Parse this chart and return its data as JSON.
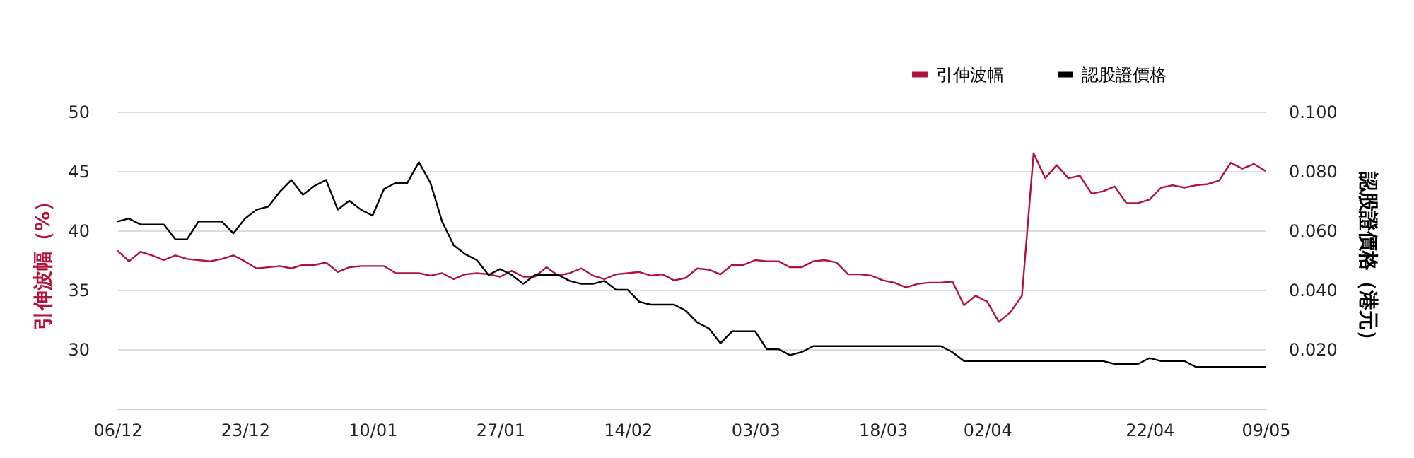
{
  "chart_data": {
    "type": "line",
    "ylabel": "引伸波幅（%）",
    "y2label": "認股證價格（港元）",
    "categories": [
      "06/12",
      null,
      null,
      null,
      null,
      null,
      null,
      null,
      null,
      null,
      null,
      "23/12",
      null,
      null,
      null,
      null,
      null,
      null,
      null,
      null,
      null,
      null,
      "10/01",
      null,
      null,
      null,
      null,
      null,
      null,
      null,
      null,
      null,
      null,
      "27/01",
      null,
      null,
      null,
      null,
      null,
      null,
      null,
      null,
      null,
      null,
      "14/02",
      null,
      null,
      null,
      null,
      null,
      null,
      null,
      null,
      null,
      null,
      "03/03",
      null,
      null,
      null,
      null,
      null,
      null,
      null,
      null,
      null,
      null,
      "18/03",
      null,
      null,
      null,
      null,
      null,
      null,
      null,
      null,
      "02/04",
      null,
      null,
      null,
      null,
      null,
      null,
      null,
      null,
      null,
      null,
      null,
      null,
      null,
      "22/04",
      null,
      null,
      null,
      null,
      null,
      null,
      null,
      null,
      null,
      "09/05"
    ],
    "series": [
      {
        "name": "引伸波幅",
        "color": "#b0123a",
        "values": [
          38.3,
          37.4,
          38.2,
          37.9,
          37.5,
          37.9,
          37.6,
          37.5,
          37.4,
          37.6,
          37.9,
          37.4,
          36.8,
          36.9,
          37.0,
          36.8,
          37.1,
          37.1,
          37.3,
          36.5,
          36.9,
          37.0,
          37.0,
          37.0,
          36.4,
          36.4,
          36.4,
          36.2,
          36.4,
          35.9,
          36.3,
          36.4,
          36.3,
          36.1,
          36.6,
          36.1,
          36.1,
          36.9,
          36.2,
          36.4,
          36.8,
          36.2,
          35.9,
          36.3,
          36.4,
          36.5,
          36.2,
          36.3,
          35.8,
          36.0,
          36.8,
          36.7,
          36.3,
          37.1,
          37.1,
          37.5,
          37.4,
          37.4,
          36.9,
          36.9,
          37.4,
          37.5,
          37.3,
          36.3,
          36.3,
          36.2,
          35.8,
          35.6,
          35.2,
          35.5,
          35.6,
          35.6,
          35.7,
          33.7,
          34.5,
          34.0,
          32.3,
          33.1,
          34.5,
          46.5,
          44.4,
          45.5,
          44.4,
          44.6,
          43.1,
          43.3,
          43.7,
          42.3,
          42.3,
          42.6,
          43.6,
          43.8,
          43.6,
          43.8,
          43.9,
          44.2,
          45.7,
          45.2,
          45.6,
          45.0
        ]
      },
      {
        "name": "認股證價格",
        "color": "#000000",
        "axis": "y2",
        "values": [
          0.063,
          0.064,
          0.062,
          0.062,
          0.062,
          0.057,
          0.057,
          0.063,
          0.063,
          0.063,
          0.059,
          0.064,
          0.067,
          0.068,
          0.073,
          0.077,
          0.072,
          0.075,
          0.077,
          0.067,
          0.07,
          0.067,
          0.065,
          0.074,
          0.076,
          0.076,
          0.083,
          0.076,
          0.063,
          0.055,
          0.052,
          0.05,
          0.045,
          0.047,
          0.045,
          0.042,
          0.045,
          0.045,
          0.045,
          0.043,
          0.042,
          0.042,
          0.043,
          0.04,
          0.04,
          0.036,
          0.035,
          0.035,
          0.035,
          0.033,
          0.029,
          0.027,
          0.022,
          0.026,
          0.026,
          0.026,
          0.02,
          0.02,
          0.018,
          0.019,
          0.021,
          0.021,
          0.021,
          0.021,
          0.021,
          0.021,
          0.021,
          0.021,
          0.021,
          0.021,
          0.021,
          0.021,
          0.019,
          0.016,
          0.016,
          0.016,
          0.016,
          0.016,
          0.016,
          0.016,
          0.016,
          0.016,
          0.016,
          0.016,
          0.016,
          0.016,
          0.015,
          0.015,
          0.015,
          0.017,
          0.016,
          0.016,
          0.016,
          0.014,
          0.014,
          0.014,
          0.014,
          0.014,
          0.014,
          0.014
        ]
      }
    ],
    "ylim": [
      25,
      50
    ],
    "yticks": [
      30,
      35,
      40,
      45,
      50
    ],
    "y2lim": [
      0,
      0.1
    ],
    "y2ticks": [
      {
        "value": 0.02,
        "label": "0.020"
      },
      {
        "value": 0.04,
        "label": "0.040"
      },
      {
        "value": 0.06,
        "label": "0.060"
      },
      {
        "value": 0.08,
        "label": "0.080"
      },
      {
        "value": 0.1,
        "label": "0.100"
      }
    ],
    "grid": "y",
    "legend": "top right"
  }
}
